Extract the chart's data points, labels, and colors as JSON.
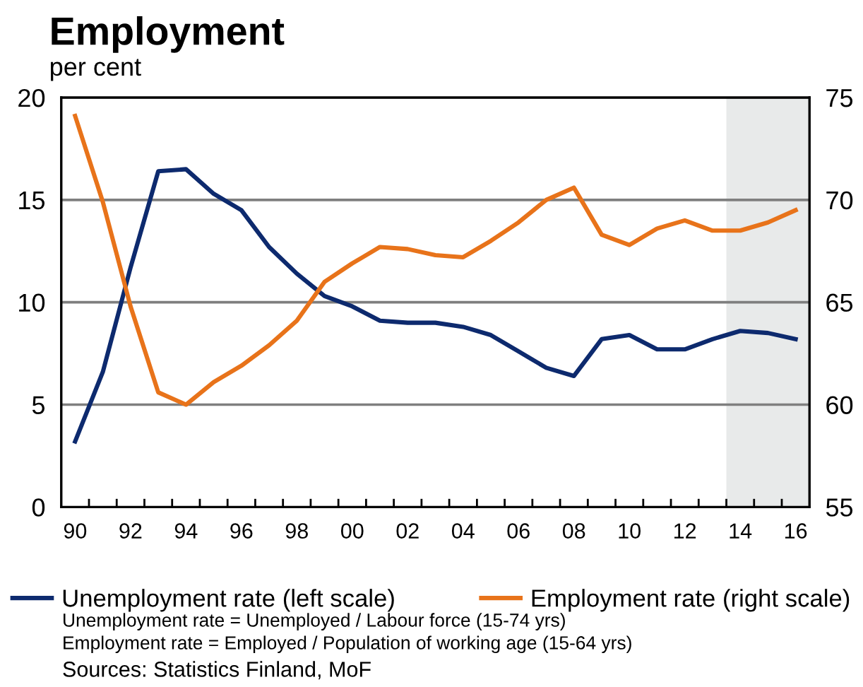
{
  "chart_data": {
    "type": "line",
    "title": "Employment",
    "subtitle": "per cent",
    "x": [
      1990,
      1991,
      1992,
      1993,
      1994,
      1995,
      1996,
      1997,
      1998,
      1999,
      2000,
      2001,
      2002,
      2003,
      2004,
      2005,
      2006,
      2007,
      2008,
      2009,
      2010,
      2011,
      2012,
      2013,
      2014,
      2015,
      2016
    ],
    "series": [
      {
        "name": "Unemployment rate (left scale)",
        "color": "#0d2a6e",
        "values": [
          3.2,
          6.6,
          11.7,
          16.4,
          16.5,
          15.3,
          14.5,
          12.7,
          11.4,
          10.3,
          9.8,
          9.1,
          9.0,
          9.0,
          8.8,
          8.4,
          7.6,
          6.8,
          6.4,
          8.2,
          8.4,
          7.7,
          7.7,
          8.2,
          8.6,
          8.5,
          8.2
        ]
      },
      {
        "name": "Employment rate (right scale)",
        "color": "#e8731a",
        "axis": "y2",
        "values": [
          74.1,
          69.9,
          64.8,
          60.6,
          60.0,
          61.1,
          61.9,
          62.9,
          64.1,
          66.0,
          66.9,
          67.7,
          67.6,
          67.3,
          67.2,
          68.0,
          68.9,
          70.0,
          70.6,
          68.3,
          67.8,
          68.6,
          69.0,
          68.5,
          68.5,
          68.9,
          69.5
        ]
      }
    ],
    "xlim": [
      1989.5,
      2016.5
    ],
    "xticks": [
      {
        "value": 1990,
        "label": "90"
      },
      {
        "value": 1992,
        "label": "92"
      },
      {
        "value": 1994,
        "label": "94"
      },
      {
        "value": 1996,
        "label": "96"
      },
      {
        "value": 1998,
        "label": "98"
      },
      {
        "value": 2000,
        "label": "00"
      },
      {
        "value": 2002,
        "label": "02"
      },
      {
        "value": 2004,
        "label": "04"
      },
      {
        "value": 2006,
        "label": "06"
      },
      {
        "value": 2008,
        "label": "08"
      },
      {
        "value": 2010,
        "label": "10"
      },
      {
        "value": 2012,
        "label": "12"
      },
      {
        "value": 2014,
        "label": "14"
      },
      {
        "value": 2016,
        "label": "16"
      }
    ],
    "ylim": [
      0,
      20
    ],
    "yticks": [
      0,
      5,
      10,
      15,
      20
    ],
    "y2lim": [
      55,
      75
    ],
    "y2ticks": [
      55,
      60,
      65,
      70,
      75
    ],
    "bands": [
      {
        "axis": "x",
        "from": 2013.5,
        "to": 2016.5,
        "color": "#e8eaea"
      }
    ],
    "grid": "y",
    "legend": "bottom",
    "annotations": [
      "Unemployment rate = Unemployed / Labour force (15-74 yrs)",
      "Employment rate = Employed / Population of working age (15-64 yrs)",
      "Sources: Statistics Finland, MoF"
    ]
  }
}
